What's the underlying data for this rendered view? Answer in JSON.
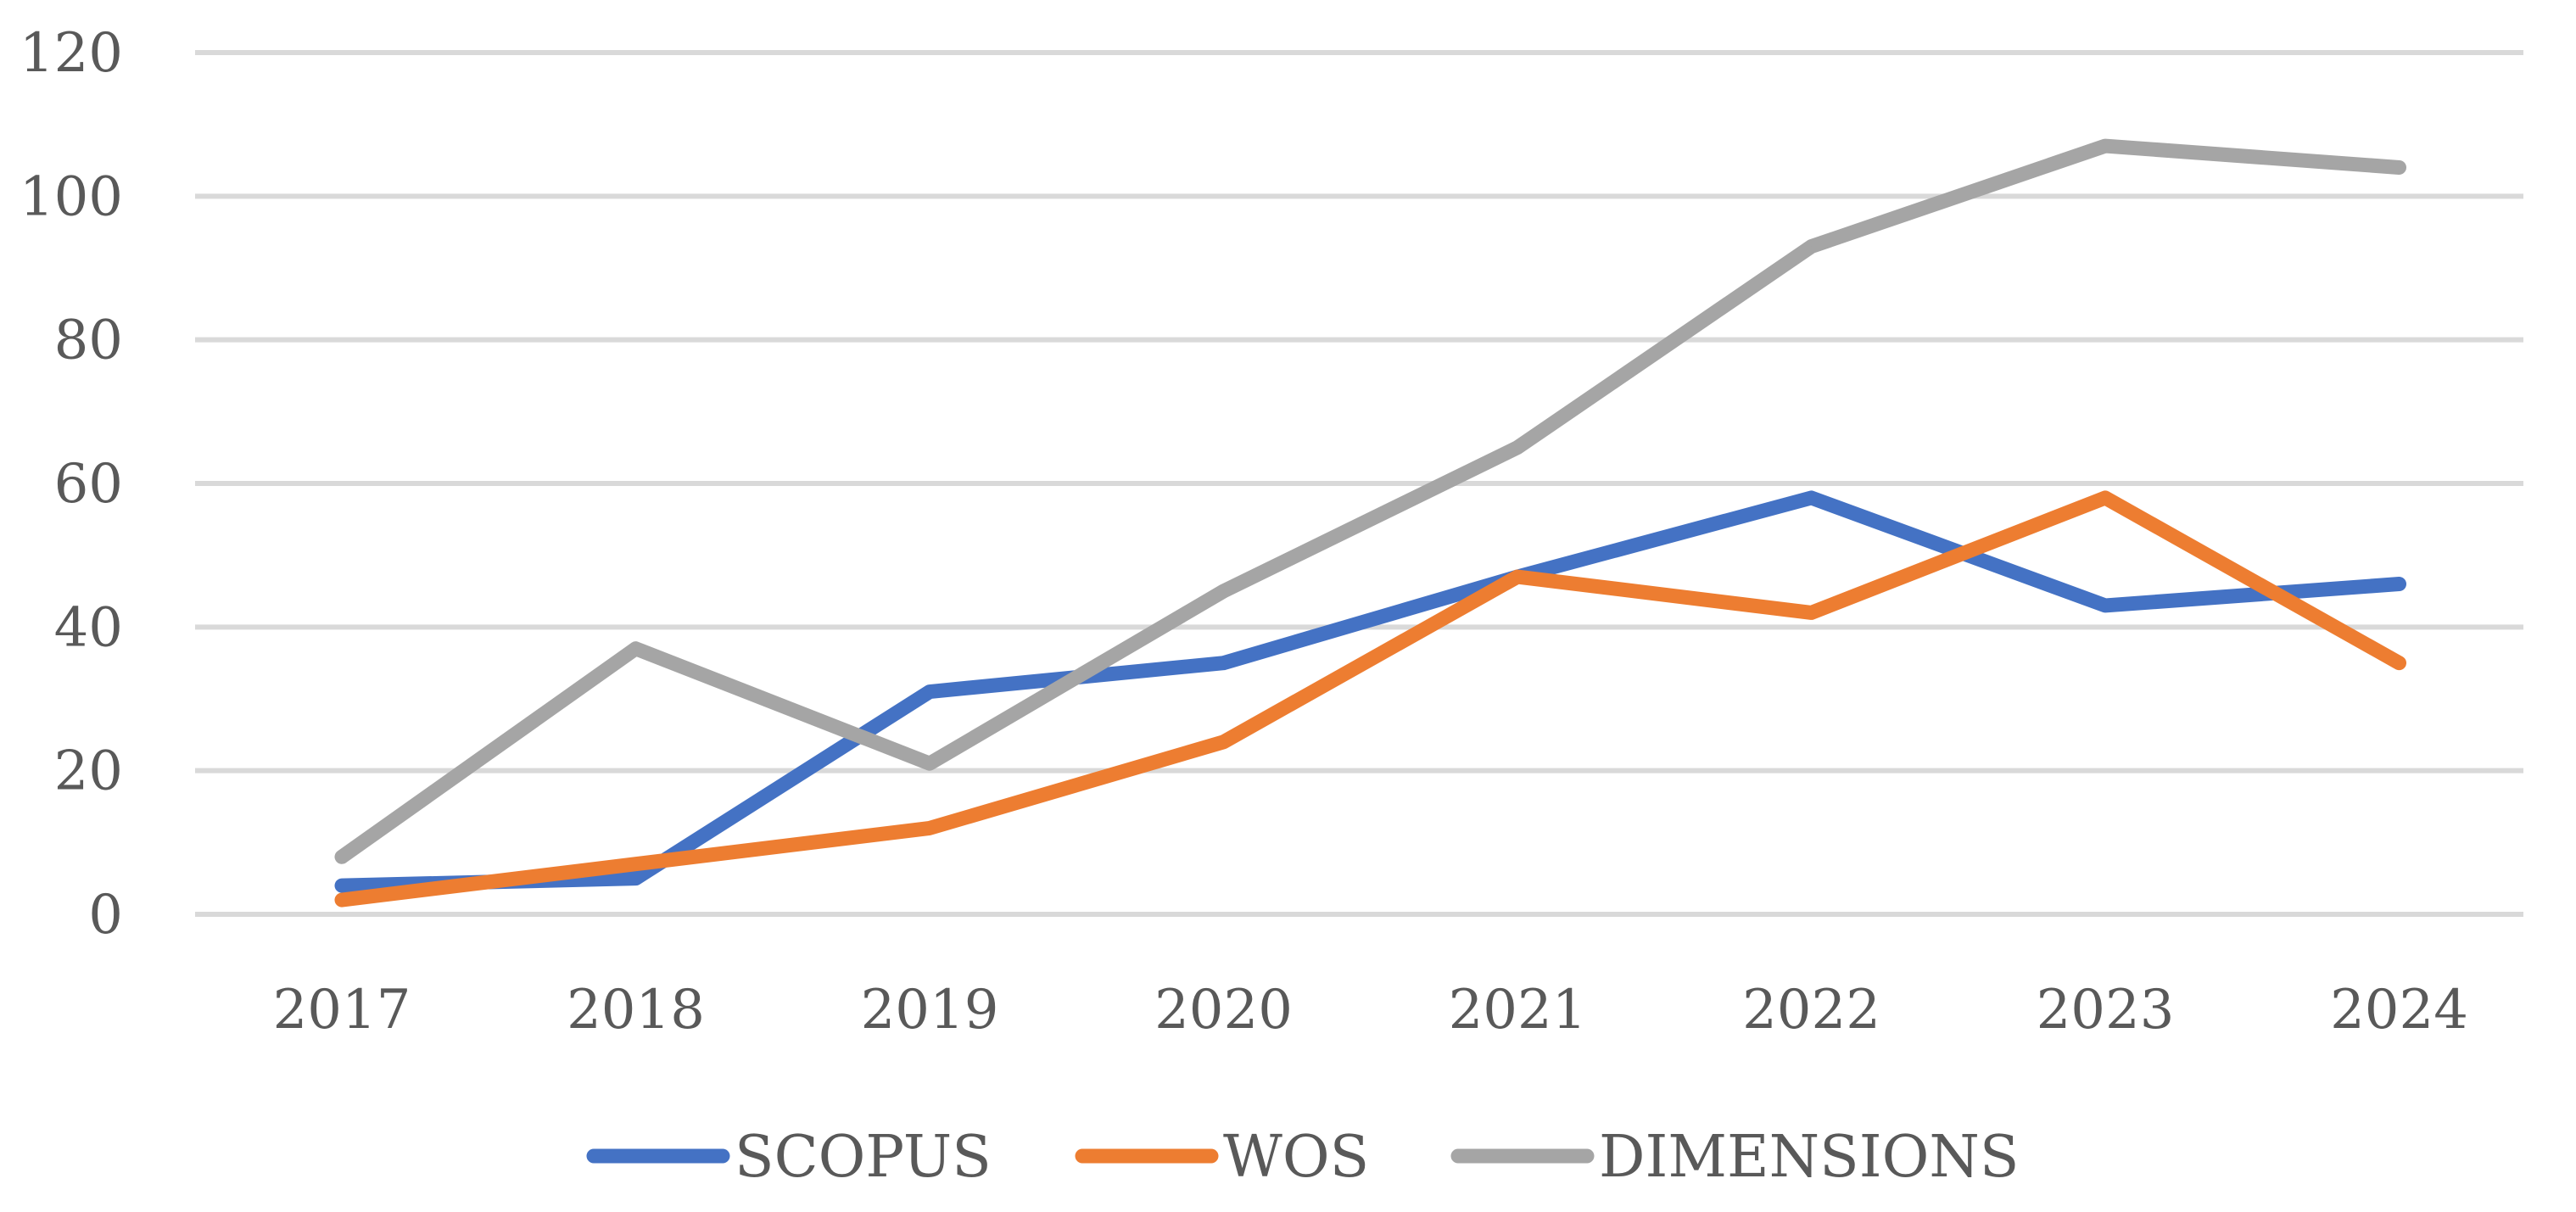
{
  "chart_data": {
    "type": "line",
    "title": "",
    "xlabel": "",
    "ylabel": "",
    "categories": [
      "2017",
      "2018",
      "2019",
      "2020",
      "2021",
      "2022",
      "2023",
      "2024"
    ],
    "ylim": [
      0,
      120
    ],
    "yticks": [
      "0",
      "20",
      "40",
      "60",
      "80",
      "100",
      "120"
    ],
    "grid": true,
    "legend_position": "bottom",
    "series": [
      {
        "name": "SCOPUS",
        "color": "#4472c4",
        "values": [
          4,
          5,
          31,
          35,
          47,
          58,
          43,
          46
        ]
      },
      {
        "name": "WOS",
        "color": "#ed7d31",
        "values": [
          2,
          7,
          12,
          24,
          47,
          42,
          58,
          35
        ]
      },
      {
        "name": "DIMENSIONS",
        "color": "#a5a5a5",
        "values": [
          8,
          37,
          21,
          45,
          65,
          93,
          107,
          104
        ]
      }
    ]
  }
}
